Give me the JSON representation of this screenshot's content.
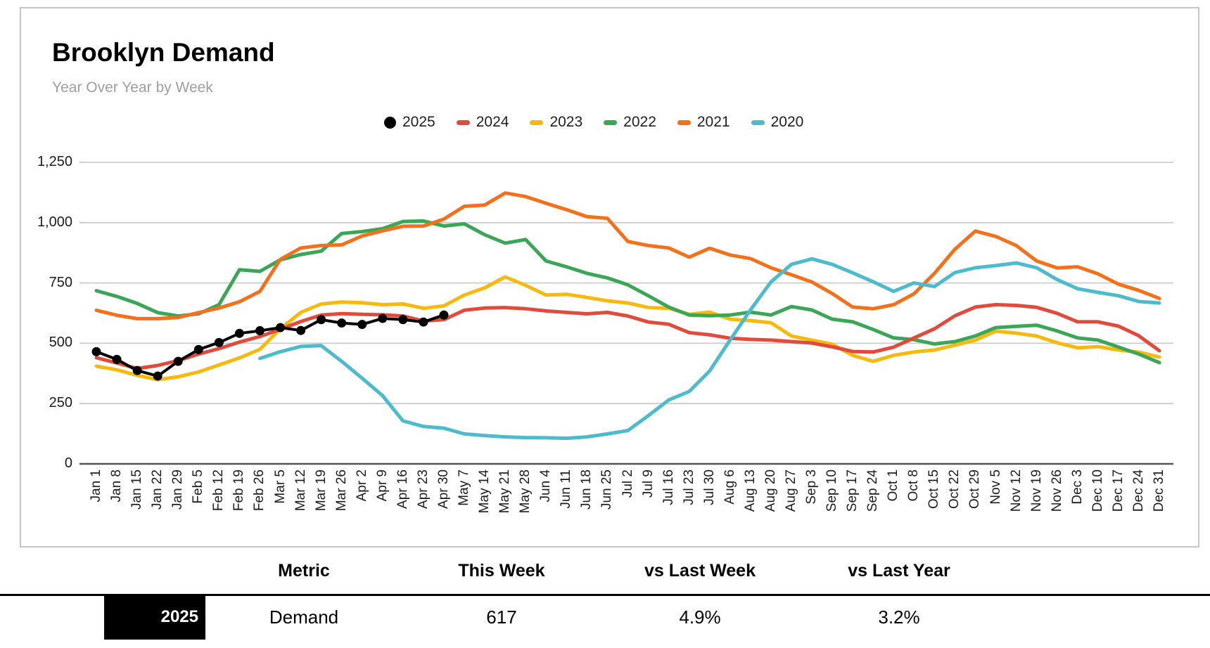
{
  "header": {
    "title": "Brooklyn Demand",
    "subtitle": "Year Over Year by Week"
  },
  "chart_data": {
    "type": "line",
    "title": "Brooklyn Demand",
    "subtitle": "Year Over Year by Week",
    "xlabel": "",
    "ylabel": "",
    "ylim": [
      0,
      1250
    ],
    "grid": true,
    "legend_position": "top",
    "y_ticks": [
      "0",
      "250",
      "500",
      "750",
      "1,000",
      "1,250"
    ],
    "x_labels": [
      "Jan 1",
      "Jan 8",
      "Jan 15",
      "Jan 22",
      "Jan 29",
      "Feb 5",
      "Feb 12",
      "Feb 19",
      "Feb 26",
      "Mar 5",
      "Mar 12",
      "Mar 19",
      "Mar 26",
      "Apr 2",
      "Apr 9",
      "Apr 16",
      "Apr 23",
      "Apr 30",
      "May 7",
      "May 14",
      "May 21",
      "May 28",
      "Jun 4",
      "Jun 11",
      "Jun 18",
      "Jun 25",
      "Jul 2",
      "Jul 9",
      "Jul 16",
      "Jul 23",
      "Jul 30",
      "Aug 6",
      "Aug 13",
      "Aug 20",
      "Aug 27",
      "Sep 3",
      "Sep 10",
      "Sep 17",
      "Sep 24",
      "Oct 1",
      "Oct 8",
      "Oct 15",
      "Oct 22",
      "Oct 29",
      "Nov 5",
      "Nov 12",
      "Nov 19",
      "Nov 26",
      "Dec 3",
      "Dec 10",
      "Dec 17",
      "Dec 24",
      "Dec 31"
    ],
    "draw_order": [
      "2023",
      "2022",
      "2021",
      "2024",
      "2020",
      "2025"
    ],
    "series": [
      {
        "name": "2025",
        "color": "#000000",
        "dots": true,
        "start_index": 0,
        "values": [
          465,
          433,
          387,
          364,
          425,
          474,
          503,
          541,
          552,
          565,
          553,
          598,
          584,
          578,
          603,
          598,
          588,
          617
        ]
      },
      {
        "name": "2024",
        "color": "#E14B3B",
        "start_index": 0,
        "values": [
          440,
          418,
          395,
          408,
          428,
          455,
          478,
          505,
          528,
          558,
          590,
          617,
          623,
          620,
          618,
          613,
          592,
          598,
          637,
          646,
          648,
          643,
          634,
          628,
          622,
          628,
          613,
          588,
          579,
          544,
          535,
          521,
          516,
          513,
          507,
          501,
          485,
          466,
          464,
          484,
          522,
          560,
          614,
          650,
          660,
          657,
          649,
          624,
          589,
          589,
          571,
          531,
          469
        ]
      },
      {
        "name": "2023",
        "color": "#F7B90D",
        "start_index": 0,
        "values": [
          405,
          390,
          367,
          349,
          361,
          381,
          410,
          439,
          475,
          560,
          628,
          663,
          671,
          668,
          660,
          663,
          645,
          655,
          700,
          730,
          775,
          740,
          700,
          703,
          690,
          676,
          667,
          648,
          645,
          620,
          629,
          600,
          594,
          585,
          530,
          513,
          496,
          450,
          425,
          450,
          464,
          472,
          492,
          513,
          550,
          542,
          530,
          502,
          481,
          486,
          472,
          463,
          443
        ]
      },
      {
        "name": "2022",
        "color": "#3BA656",
        "start_index": 0,
        "values": [
          718,
          694,
          665,
          627,
          613,
          622,
          660,
          805,
          798,
          846,
          868,
          882,
          955,
          963,
          975,
          1005,
          1007,
          986,
          995,
          950,
          915,
          930,
          841,
          817,
          790,
          771,
          742,
          697,
          650,
          617,
          614,
          617,
          629,
          617,
          652,
          638,
          600,
          589,
          557,
          522,
          515,
          497,
          507,
          530,
          565,
          570,
          575,
          551,
          522,
          513,
          484,
          455,
          420
        ]
      },
      {
        "name": "2021",
        "color": "#F4711C",
        "start_index": 0,
        "values": [
          637,
          616,
          602,
          602,
          607,
          627,
          646,
          672,
          715,
          848,
          895,
          905,
          908,
          945,
          966,
          985,
          986,
          1015,
          1068,
          1073,
          1123,
          1108,
          1080,
          1054,
          1025,
          1018,
          922,
          905,
          895,
          857,
          894,
          866,
          851,
          813,
          784,
          754,
          706,
          650,
          643,
          660,
          705,
          790,
          890,
          965,
          943,
          905,
          841,
          812,
          817,
          788,
          745,
          719,
          686
        ]
      },
      {
        "name": "2020",
        "color": "#4CBBCB",
        "start_index": 8,
        "values": [
          437,
          465,
          487,
          490,
          425,
          355,
          283,
          178,
          155,
          148,
          124,
          117,
          112,
          109,
          108,
          106,
          112,
          124,
          138,
          200,
          265,
          300,
          385,
          513,
          638,
          754,
          827,
          850,
          827,
          792,
          755,
          715,
          750,
          735,
          793,
          813,
          822,
          833,
          813,
          764,
          726,
          711,
          697,
          673,
          667
        ]
      }
    ]
  },
  "table": {
    "headers": [
      "Metric",
      "This Week",
      "vs Last Week",
      "vs Last Year"
    ],
    "row": {
      "year": "2025",
      "metric": "Demand",
      "this_week": "617",
      "vs_last_week": "4.9%",
      "vs_last_year": "3.2%"
    }
  },
  "colors": {
    "accent_2025": "#000000",
    "accent_2024": "#E14B3B",
    "accent_2023": "#F7B90D",
    "accent_2022": "#3BA656",
    "accent_2021": "#F4711C",
    "accent_2020": "#4CBBCB",
    "gridline": "#cccccc",
    "axis_line": "#555555"
  }
}
